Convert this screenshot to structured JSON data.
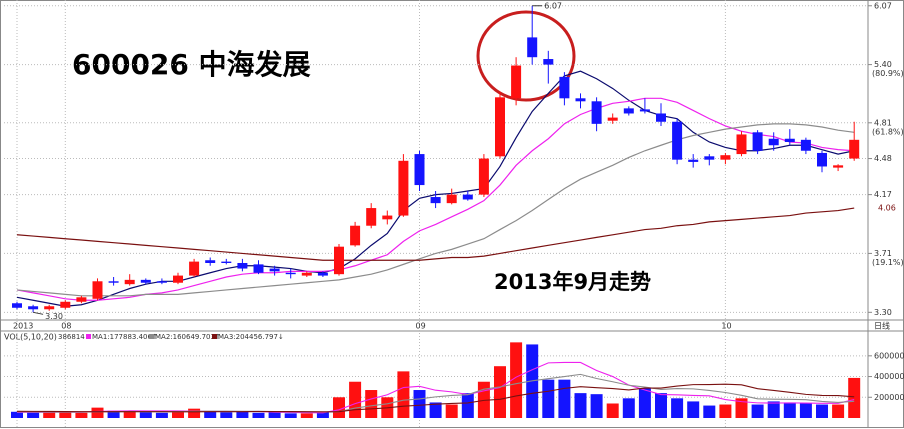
{
  "chart_data": [
    {
      "type": "candlestick",
      "title": "600026  中海发展",
      "subtitle": "2013年9月走势",
      "categories": [
        "2013",
        null,
        null,
        "08",
        null,
        null,
        null,
        null,
        null,
        null,
        null,
        null,
        null,
        null,
        null,
        null,
        null,
        null,
        null,
        null,
        null,
        null,
        null,
        null,
        null,
        "09",
        null,
        null,
        null,
        null,
        null,
        null,
        null,
        null,
        null,
        null,
        null,
        null,
        null,
        null,
        null,
        null,
        null,
        null,
        "10",
        null,
        null,
        null,
        null,
        null,
        null,
        null,
        null
      ],
      "open": [
        3.36,
        3.34,
        3.32,
        3.33,
        3.37,
        3.39,
        3.51,
        3.49,
        3.52,
        3.51,
        3.5,
        3.55,
        3.66,
        3.65,
        3.64,
        3.63,
        3.6,
        3.57,
        3.55,
        3.57,
        3.56,
        3.77,
        3.92,
        3.97,
        4.0,
        4.52,
        4.15,
        4.1,
        4.17,
        4.17,
        4.5,
        5.05,
        5.7,
        5.46,
        5.27,
        5.05,
        5.02,
        4.83,
        4.95,
        4.94,
        4.9,
        4.82,
        4.47,
        4.5,
        4.47,
        4.52,
        4.72,
        4.66,
        4.66,
        4.65,
        4.53,
        4.4,
        4.48
      ],
      "high": [
        3.37,
        3.35,
        3.35,
        3.38,
        3.41,
        3.53,
        3.54,
        3.56,
        3.53,
        3.53,
        3.57,
        3.67,
        3.68,
        3.67,
        3.67,
        3.66,
        3.62,
        3.6,
        3.58,
        3.58,
        3.78,
        3.95,
        4.1,
        4.04,
        4.52,
        4.55,
        4.2,
        4.22,
        4.2,
        4.52,
        5.12,
        5.48,
        6.07,
        5.55,
        5.32,
        5.1,
        5.06,
        4.9,
        4.97,
        5.05,
        5.0,
        4.85,
        4.52,
        4.52,
        4.53,
        4.73,
        4.74,
        4.72,
        4.75,
        4.67,
        4.55,
        4.43,
        4.82
      ],
      "low": [
        3.32,
        3.3,
        3.31,
        3.32,
        3.36,
        3.38,
        3.48,
        3.48,
        3.49,
        3.49,
        3.49,
        3.54,
        3.62,
        3.63,
        3.58,
        3.56,
        3.55,
        3.53,
        3.54,
        3.54,
        3.55,
        3.76,
        3.9,
        3.93,
        3.99,
        4.2,
        4.06,
        4.09,
        4.12,
        4.15,
        4.48,
        4.98,
        5.4,
        5.2,
        4.98,
        4.95,
        4.73,
        4.8,
        4.88,
        4.9,
        4.78,
        4.43,
        4.4,
        4.42,
        4.43,
        4.5,
        4.52,
        4.55,
        4.6,
        4.52,
        4.36,
        4.37,
        4.46
      ],
      "close": [
        3.33,
        3.32,
        3.34,
        3.37,
        3.4,
        3.51,
        3.5,
        3.52,
        3.5,
        3.5,
        3.55,
        3.65,
        3.64,
        3.64,
        3.6,
        3.57,
        3.58,
        3.56,
        3.57,
        3.55,
        3.76,
        3.92,
        4.06,
        4.0,
        4.46,
        4.25,
        4.1,
        4.17,
        4.13,
        4.48,
        5.06,
        5.39,
        5.48,
        5.4,
        5.05,
        5.02,
        4.8,
        4.86,
        4.9,
        4.92,
        4.82,
        4.47,
        4.45,
        4.47,
        4.51,
        4.7,
        4.55,
        4.6,
        4.63,
        4.55,
        4.41,
        4.42,
        4.65
      ],
      "up_color": "#ff1010",
      "down_color": "#1414ff",
      "lines": [
        {
          "color": "#0a0a6e",
          "values": [
            3.4,
            3.38,
            3.36,
            3.34,
            3.35,
            3.38,
            3.42,
            3.46,
            3.49,
            3.51,
            3.51,
            3.54,
            3.57,
            3.6,
            3.62,
            3.62,
            3.61,
            3.6,
            3.58,
            3.57,
            3.6,
            3.67,
            3.77,
            3.86,
            4.04,
            4.14,
            4.17,
            4.18,
            4.2,
            4.22,
            4.41,
            4.67,
            4.92,
            5.1,
            5.28,
            5.33,
            5.25,
            5.15,
            5.03,
            4.93,
            4.88,
            4.85,
            4.72,
            4.63,
            4.58,
            4.55,
            4.55,
            4.57,
            4.6,
            4.6,
            4.56,
            4.52,
            4.55
          ]
        },
        {
          "color": "#ee22ee",
          "values": [
            3.45,
            3.43,
            3.41,
            3.39,
            3.38,
            3.38,
            3.39,
            3.4,
            3.42,
            3.43,
            3.45,
            3.48,
            3.51,
            3.54,
            3.56,
            3.57,
            3.57,
            3.58,
            3.58,
            3.58,
            3.59,
            3.62,
            3.66,
            3.7,
            3.8,
            3.88,
            3.93,
            3.99,
            4.05,
            4.12,
            4.25,
            4.42,
            4.55,
            4.66,
            4.8,
            4.89,
            4.95,
            5.0,
            5.02,
            5.05,
            5.05,
            5.01,
            4.93,
            4.85,
            4.78,
            4.73,
            4.7,
            4.68,
            4.63,
            4.62,
            4.58,
            4.56,
            4.55
          ]
        },
        {
          "color": "#8c8c8c",
          "values": [
            3.45,
            3.44,
            3.43,
            3.42,
            3.41,
            3.41,
            3.41,
            3.41,
            3.42,
            3.42,
            3.42,
            3.43,
            3.44,
            3.45,
            3.46,
            3.47,
            3.48,
            3.49,
            3.5,
            3.51,
            3.52,
            3.54,
            3.56,
            3.59,
            3.63,
            3.67,
            3.71,
            3.74,
            3.78,
            3.82,
            3.89,
            3.96,
            4.04,
            4.13,
            4.22,
            4.3,
            4.36,
            4.42,
            4.49,
            4.55,
            4.6,
            4.65,
            4.69,
            4.72,
            4.75,
            4.77,
            4.79,
            4.8,
            4.8,
            4.79,
            4.77,
            4.74,
            4.72
          ]
        },
        {
          "color": "#7a1010",
          "end_label": "4.06",
          "values": [
            3.85,
            3.84,
            3.83,
            3.82,
            3.81,
            3.8,
            3.79,
            3.78,
            3.77,
            3.76,
            3.75,
            3.74,
            3.73,
            3.72,
            3.71,
            3.7,
            3.69,
            3.68,
            3.67,
            3.66,
            3.66,
            3.66,
            3.66,
            3.66,
            3.66,
            3.66,
            3.67,
            3.68,
            3.68,
            3.69,
            3.71,
            3.73,
            3.75,
            3.77,
            3.79,
            3.81,
            3.83,
            3.85,
            3.87,
            3.89,
            3.9,
            3.92,
            3.93,
            3.95,
            3.96,
            3.97,
            3.98,
            3.99,
            4.0,
            4.02,
            4.03,
            4.04,
            4.06
          ]
        }
      ],
      "log_scale": true,
      "ylim": [
        3.25,
        6.14
      ],
      "yticks": [
        6.07,
        {
          "value": 5.4,
          "label": "5.40",
          "note": "(80.9%)"
        },
        {
          "value": 4.81,
          "label": "4.81",
          "note": "(61.8%)"
        },
        4.48,
        4.17,
        {
          "value": 3.71,
          "label": "3.71",
          "note": "(19.1%)"
        },
        {
          "value": 3.3,
          "label": "3.30"
        }
      ],
      "grid": true,
      "high_label": "6.07",
      "low_label": "3.30",
      "period_label": "日线"
    },
    {
      "type": "bar",
      "title": "VOL(5,10,20)",
      "values": [
        60000,
        55000,
        55000,
        60000,
        50000,
        100000,
        70000,
        65000,
        55000,
        50000,
        55000,
        90000,
        60000,
        55000,
        60000,
        50000,
        55000,
        45000,
        45000,
        55000,
        200000,
        350000,
        270000,
        200000,
        450000,
        270000,
        150000,
        130000,
        240000,
        350000,
        500000,
        730000,
        710000,
        370000,
        370000,
        240000,
        230000,
        140000,
        190000,
        290000,
        240000,
        190000,
        160000,
        120000,
        130000,
        190000,
        130000,
        160000,
        150000,
        140000,
        130000,
        130000,
        386814
      ],
      "lines": [
        {
          "name": "MA1:177883.406↑",
          "color": "#ee22ee",
          "values": [
            55000,
            55000,
            56000,
            57000,
            56000,
            64000,
            67000,
            69000,
            68000,
            68000,
            68000,
            66000,
            64000,
            64000,
            62000,
            63000,
            56000,
            53000,
            51000,
            50000,
            79000,
            139000,
            184000,
            224000,
            294000,
            306000,
            268000,
            252000,
            226000,
            262000,
            294000,
            394000,
            466000,
            532000,
            536000,
            536000,
            458000,
            400000,
            318000,
            270000,
            226000,
            224000,
            218000,
            214000,
            178000,
            158000,
            146000,
            144000,
            146000,
            144000,
            142000,
            142000,
            177883.406
          ]
        },
        {
          "name": "MA2:160649.703↑",
          "color": "#8c8c8c",
          "values": [
            60000,
            58000,
            57000,
            57000,
            57000,
            59000,
            60000,
            62000,
            62000,
            61000,
            62000,
            65000,
            66000,
            66000,
            65000,
            65000,
            62000,
            60000,
            58000,
            58000,
            60000,
            96000,
            118000,
            137000,
            172000,
            184000,
            204000,
            218000,
            225000,
            278000,
            300000,
            331000,
            359000,
            379000,
            400000,
            421000,
            381000,
            350000,
            316000,
            299000,
            276000,
            284000,
            281000,
            266000,
            246000,
            219000,
            185000,
            182000,
            180000,
            177000,
            160000,
            150000,
            160649.703
          ]
        },
        {
          "name": "MA3:204456.797↓",
          "color": "#7a1010",
          "values": [
            65000,
            64000,
            63000,
            62000,
            61000,
            61000,
            61000,
            61000,
            61000,
            61000,
            60000,
            60000,
            61000,
            61000,
            61000,
            62000,
            62000,
            62000,
            61000,
            60000,
            61000,
            80000,
            88000,
            98000,
            114000,
            123000,
            133000,
            141000,
            145000,
            170000,
            180000,
            213000,
            238000,
            258000,
            286000,
            302000,
            293000,
            284000,
            271000,
            289000,
            289000,
            308000,
            322000,
            323000,
            326000,
            320000,
            283000,
            266000,
            248000,
            228000,
            218000,
            217000,
            204456.797
          ]
        }
      ],
      "ylim": [
        0,
        830000
      ],
      "yticks": [
        200000,
        400000,
        600000
      ],
      "grid": true
    }
  ]
}
